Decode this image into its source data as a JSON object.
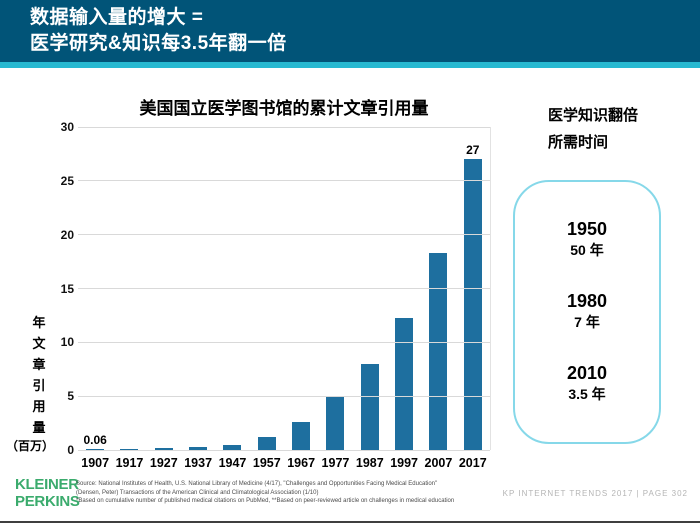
{
  "header": {
    "line1": "数据输入量的增大 =",
    "line2": "医学研究&知识每3.5年翻一倍"
  },
  "chart_data": {
    "type": "bar",
    "title": "美国国立医学图书馆的累计文章引用量",
    "categories": [
      "1907",
      "1917",
      "1927",
      "1937",
      "1947",
      "1957",
      "1967",
      "1977",
      "1987",
      "1997",
      "2007",
      "2017"
    ],
    "values": [
      0.06,
      0.1,
      0.2,
      0.3,
      0.5,
      1.2,
      2.6,
      5,
      8,
      12.3,
      18.3,
      27
    ],
    "bar_labels": {
      "0": "0.06",
      "11": "27"
    },
    "ylabel_vertical": "年文章引用量",
    "ylabel_unit": "（百万）",
    "xlabel": "",
    "y_ticks": [
      30,
      25,
      20,
      15,
      10,
      5,
      0
    ],
    "ylim": [
      0,
      30
    ],
    "grid": true,
    "legend": "none",
    "bar_color": "#1e6f9f"
  },
  "side_panel": {
    "title_line1": "医学知识翻倍",
    "title_line2": "所需时间",
    "entries": [
      {
        "year": "1950",
        "time": "50 年"
      },
      {
        "year": "1980",
        "time": "7 年"
      },
      {
        "year": "2010",
        "time": "3.5 年"
      }
    ]
  },
  "footer": {
    "logo_line1": "KLEINER",
    "logo_line2": "PERKINS",
    "source_lines": [
      "Source: National Institutes of Health, U.S. National Library of Medicine (4/17), \"Challenges and Opportunities Facing Medical Education\"",
      "(Densen, Peter) Transactions of the American Clinical and Climatological Association (1/10)",
      "*Based on cumulative number of published medical citations on PubMed, **Based on peer-reviewed article on challenges in medical education"
    ],
    "page_info": "KP INTERNET TRENDS 2017   |   PAGE 302"
  },
  "colors": {
    "header_bg": "#015478",
    "stripe": "#27b9d1",
    "bar": "#1e6f9f",
    "logo_green": "#3bab6d",
    "box_border": "#86d8e9"
  }
}
